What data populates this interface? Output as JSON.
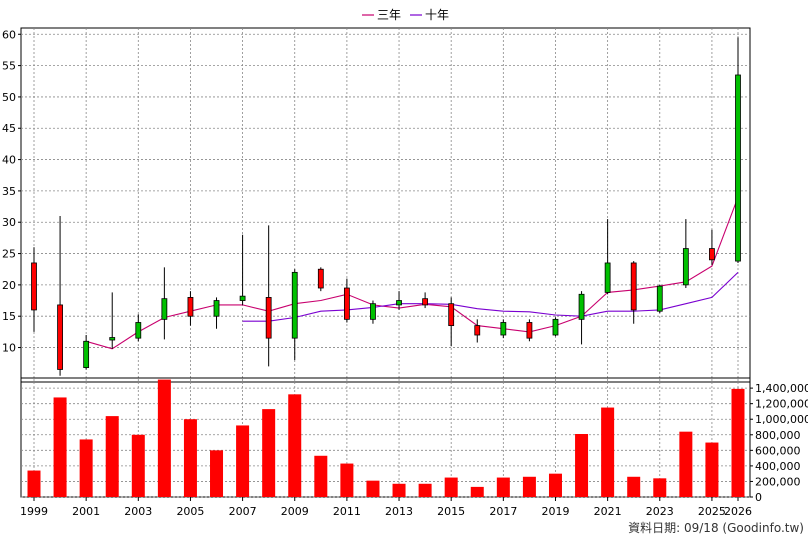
{
  "legend": [
    {
      "name": "三年",
      "color": "#c8006e"
    },
    {
      "name": "十年",
      "color": "#7a00d0"
    }
  ],
  "source_note": "資料日期: 09/18 (Goodinfo.tw)",
  "chart_data": [
    {
      "type": "candlestick",
      "y_ticks": [
        10,
        15,
        20,
        25,
        30,
        35,
        40,
        45,
        50,
        55,
        60
      ],
      "ylim": [
        4.5,
        61
      ],
      "x_ticks": [
        "1999",
        "2001",
        "2003",
        "2005",
        "2007",
        "2009",
        "2011",
        "2013",
        "2015",
        "2017",
        "2019",
        "2021",
        "2023",
        "2025",
        "2026"
      ],
      "years": [
        1999,
        2000,
        2001,
        2002,
        2003,
        2004,
        2005,
        2006,
        2007,
        2008,
        2009,
        2010,
        2011,
        2012,
        2013,
        2014,
        2015,
        2016,
        2017,
        2018,
        2019,
        2020,
        2021,
        2022,
        2023,
        2024,
        2025,
        2026
      ],
      "candles": [
        {
          "open": 16.0,
          "close": 23.5,
          "high": 26.0,
          "low": 12.5
        },
        {
          "open": 6.5,
          "close": 16.8,
          "high": 31.0,
          "low": 5.5
        },
        {
          "open": 11.0,
          "close": 6.8,
          "high": 12.0,
          "low": 6.5
        },
        {
          "open": 11.6,
          "close": 11.2,
          "high": 18.8,
          "low": 9.8
        },
        {
          "open": 14.0,
          "close": 11.5,
          "high": 15.3,
          "low": 11.0
        },
        {
          "open": 17.8,
          "close": 14.5,
          "high": 22.8,
          "low": 11.3
        },
        {
          "open": 15.0,
          "close": 18.0,
          "high": 19.0,
          "low": 13.5
        },
        {
          "open": 17.5,
          "close": 15.0,
          "high": 18.0,
          "low": 13.0
        },
        {
          "open": 18.2,
          "close": 17.5,
          "high": 28.0,
          "low": 16.8
        },
        {
          "open": 11.5,
          "close": 18.0,
          "high": 29.5,
          "low": 7.0
        },
        {
          "open": 22.0,
          "close": 11.5,
          "high": 22.5,
          "low": 8.0
        },
        {
          "open": 19.5,
          "close": 22.5,
          "high": 22.8,
          "low": 19.0
        },
        {
          "open": 14.5,
          "close": 19.5,
          "high": 21.0,
          "low": 14.0
        },
        {
          "open": 17.0,
          "close": 14.5,
          "high": 17.5,
          "low": 13.8
        },
        {
          "open": 17.5,
          "close": 16.8,
          "high": 19.0,
          "low": 16.0
        },
        {
          "open": 16.8,
          "close": 17.8,
          "high": 18.8,
          "low": 16.3
        },
        {
          "open": 13.5,
          "close": 17.0,
          "high": 18.0,
          "low": 10.2
        },
        {
          "open": 12.0,
          "close": 13.5,
          "high": 14.5,
          "low": 10.8
        },
        {
          "open": 14.0,
          "close": 12.0,
          "high": 14.5,
          "low": 11.5
        },
        {
          "open": 11.5,
          "close": 14.0,
          "high": 14.5,
          "low": 11.0
        },
        {
          "open": 14.5,
          "close": 12.0,
          "high": 14.8,
          "low": 11.8
        },
        {
          "open": 18.5,
          "close": 14.5,
          "high": 19.0,
          "low": 10.5
        },
        {
          "open": 23.5,
          "close": 18.8,
          "high": 30.5,
          "low": 18.5
        },
        {
          "open": 16.0,
          "close": 23.5,
          "high": 23.8,
          "low": 13.8
        },
        {
          "open": 19.8,
          "close": 15.8,
          "high": 20.0,
          "low": 15.5
        },
        {
          "open": 25.8,
          "close": 20.0,
          "high": 30.5,
          "low": 19.5
        },
        {
          "open": 24.0,
          "close": 25.8,
          "high": 28.8,
          "low": 23.2
        },
        {
          "open": 53.5,
          "close": 23.8,
          "high": 59.5,
          "low": 23.5
        }
      ],
      "series": [
        {
          "name": "三年",
          "values": [
            null,
            null,
            11.0,
            9.8,
            12.5,
            14.8,
            15.8,
            16.8,
            16.8,
            15.8,
            17.0,
            17.5,
            18.5,
            16.8,
            16.3,
            16.9,
            16.5,
            13.5,
            13.0,
            12.5,
            13.5,
            15.0,
            18.8,
            19.2,
            19.8,
            20.5,
            23.0,
            34.0
          ]
        },
        {
          "name": "十年",
          "values": [
            null,
            null,
            null,
            null,
            null,
            null,
            null,
            null,
            14.2,
            14.2,
            14.8,
            15.8,
            16.0,
            16.4,
            17.0,
            17.0,
            16.9,
            16.2,
            15.8,
            15.7,
            15.2,
            15.0,
            15.8,
            15.8,
            16.0,
            17.0,
            18.0,
            22.0
          ]
        }
      ]
    },
    {
      "type": "bar",
      "y_ticks": [
        0,
        200000,
        400000,
        600000,
        800000,
        1000000,
        1200000,
        1400000
      ],
      "y_tick_labels": [
        "0",
        "200,000",
        "400,000",
        "600,000",
        "800,000",
        "1,000,000",
        "1,200,000",
        "1,400,000"
      ],
      "ylim": [
        0,
        1530000
      ],
      "color": "#ff0000",
      "values": [
        340000,
        1280000,
        740000,
        1040000,
        800000,
        1510000,
        1000000,
        600000,
        920000,
        1130000,
        1320000,
        530000,
        430000,
        210000,
        170000,
        170000,
        250000,
        130000,
        250000,
        260000,
        300000,
        810000,
        1150000,
        260000,
        240000,
        840000,
        700000,
        1390000
      ]
    }
  ]
}
